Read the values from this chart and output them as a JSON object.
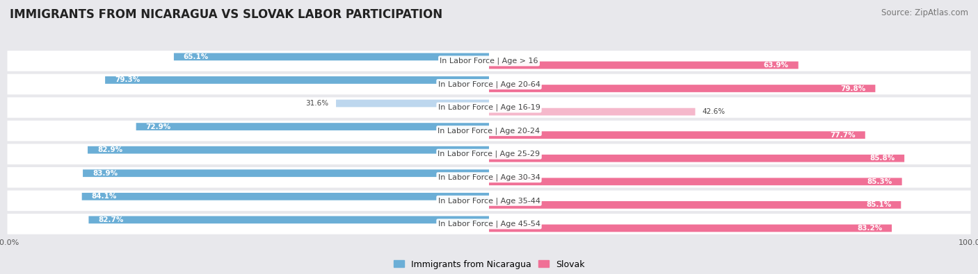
{
  "title": "IMMIGRANTS FROM NICARAGUA VS SLOVAK LABOR PARTICIPATION",
  "source": "Source: ZipAtlas.com",
  "categories": [
    "In Labor Force | Age > 16",
    "In Labor Force | Age 20-64",
    "In Labor Force | Age 16-19",
    "In Labor Force | Age 20-24",
    "In Labor Force | Age 25-29",
    "In Labor Force | Age 30-34",
    "In Labor Force | Age 35-44",
    "In Labor Force | Age 45-54"
  ],
  "nicaragua_values": [
    65.1,
    79.3,
    31.6,
    72.9,
    82.9,
    83.9,
    84.1,
    82.7
  ],
  "slovak_values": [
    63.9,
    79.8,
    42.6,
    77.7,
    85.8,
    85.3,
    85.1,
    83.2
  ],
  "nicaragua_color": "#6baed6",
  "nicaragua_color_light": "#bdd7ee",
  "slovak_color": "#f07096",
  "slovak_color_light": "#f5b8cb",
  "row_bg_color": "#e8e8ec",
  "row_inner_bg": "#f5f5f7",
  "background_color": "#e8e8ec",
  "max_value": 100.0,
  "legend_nicaragua": "Immigrants from Nicaragua",
  "legend_slovak": "Slovak",
  "title_fontsize": 12,
  "source_fontsize": 8.5,
  "label_fontsize": 8,
  "value_fontsize": 7.5,
  "legend_fontsize": 9,
  "axis_label_fontsize": 8
}
